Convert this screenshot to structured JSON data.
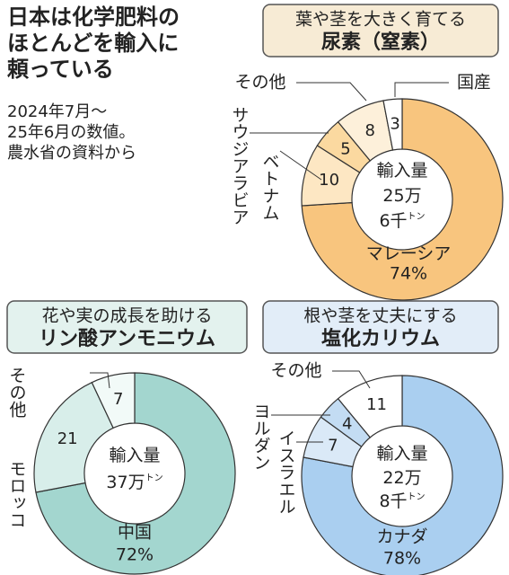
{
  "header": {
    "title_lines": [
      "日本は化学肥料の",
      "ほとんどを輸入に",
      "頼っている"
    ],
    "note_lines": [
      "2024年7月～",
      "25年6月の数値。",
      "農水省の資料から"
    ]
  },
  "chart_data": [
    {
      "type": "donut",
      "title": "葉や茎を大きく育てる",
      "subtitle": "尿素（窒素）",
      "center_lines": [
        "輸入量",
        "25万",
        "6千"
      ],
      "unit": "トン",
      "categories": [
        "マレーシア",
        "ベトナム",
        "サウジアラビア",
        "その他",
        "国産"
      ],
      "values": [
        74,
        10,
        5,
        8,
        3
      ],
      "value_labels": [
        "74%",
        "10",
        "5",
        "8",
        "3"
      ],
      "colors": [
        "#f8c57e",
        "#fde7c3",
        "#fbd9a0",
        "#fdf0da",
        "#ffffff"
      ],
      "header_color": "#f7ebd5"
    },
    {
      "type": "donut",
      "title": "花や実の成長を助ける",
      "subtitle": "リン酸アンモニウム",
      "center_lines": [
        "輸入量",
        "37万"
      ],
      "unit": "トン",
      "categories": [
        "中国",
        "モロッコ",
        "その他"
      ],
      "values": [
        72,
        21,
        7
      ],
      "value_labels": [
        "72%",
        "21",
        "7"
      ],
      "colors": [
        "#a3d6cf",
        "#d8eeea",
        "#f2faf8"
      ],
      "header_color": "#e3f2ee"
    },
    {
      "type": "donut",
      "title": "根や茎を丈夫にする",
      "subtitle": "塩化カリウム",
      "center_lines": [
        "輸入量",
        "22万",
        "8千"
      ],
      "unit": "トン",
      "categories": [
        "カナダ",
        "イスラエル",
        "ヨルダン",
        "その他"
      ],
      "values": [
        78,
        7,
        4,
        11
      ],
      "value_labels": [
        "78%",
        "7",
        "4",
        "11"
      ],
      "colors": [
        "#aacff0",
        "#dae9f7",
        "#c3dcf3",
        "#ffffff"
      ],
      "header_color": "#e2edf8"
    }
  ]
}
